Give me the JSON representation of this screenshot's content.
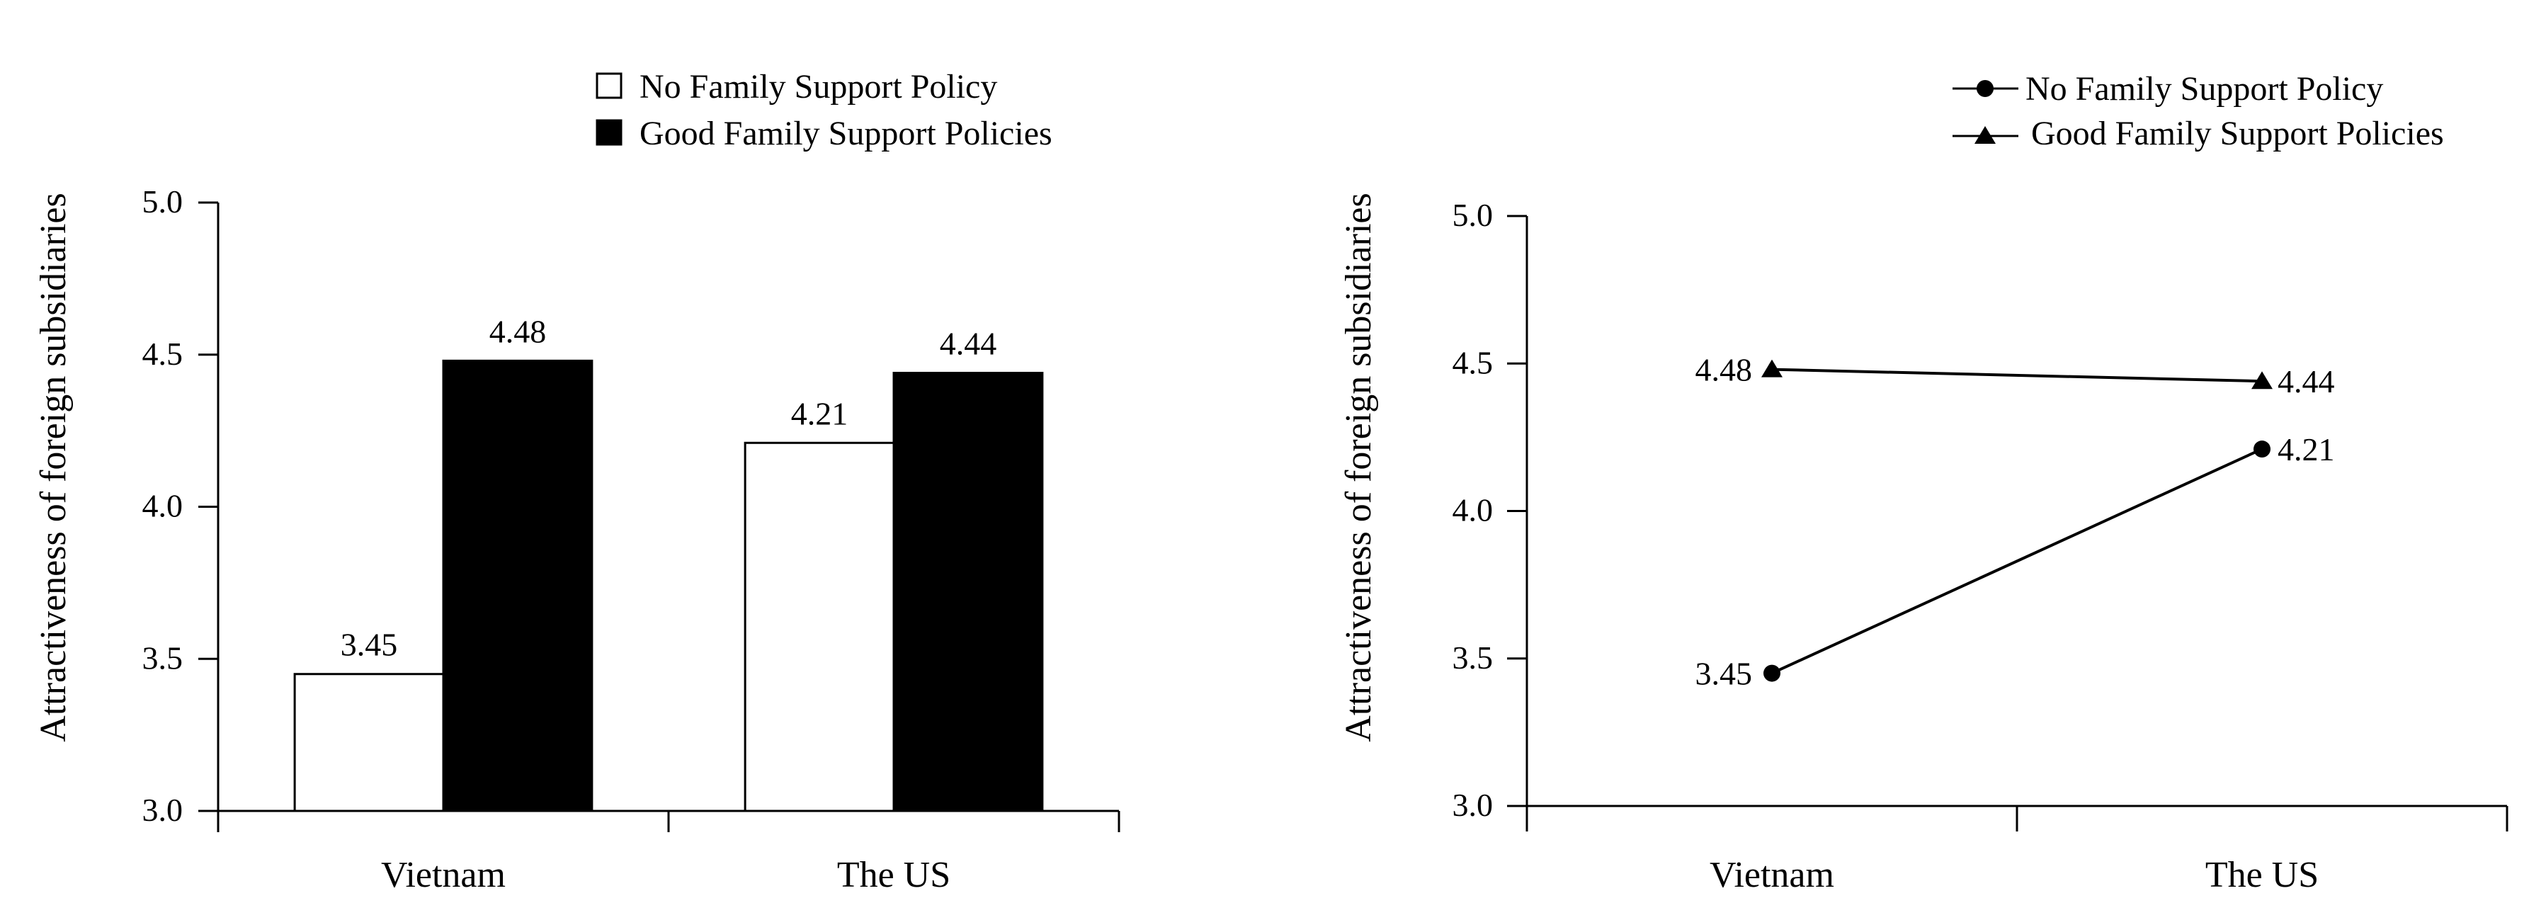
{
  "chart_data": [
    {
      "type": "bar",
      "categories": [
        "Vietnam",
        "The US"
      ],
      "series": [
        {
          "name": "No Family Support Policy",
          "values": [
            3.45,
            4.21
          ],
          "labels": [
            "3.45",
            "4.21"
          ],
          "color": "#ffffff"
        },
        {
          "name": "Good Family Support Policies",
          "values": [
            4.48,
            4.44
          ],
          "labels": [
            "4.48",
            "4.44"
          ],
          "color": "#000000"
        }
      ],
      "ylabel": "Attractiveness of foreign subsidiaries",
      "ylim": [
        3.0,
        5.0
      ],
      "yticks": [
        "3.0",
        "3.5",
        "4.0",
        "4.5",
        "5.0"
      ],
      "legend_position": "top",
      "grid": false
    },
    {
      "type": "line",
      "categories": [
        "Vietnam",
        "The US"
      ],
      "series": [
        {
          "name": "No Family Support Policy",
          "values": [
            3.45,
            4.21
          ],
          "labels": [
            "3.45",
            "4.21"
          ],
          "marker": "circle"
        },
        {
          "name": "Good Family Support Policies",
          "values": [
            4.48,
            4.44
          ],
          "labels": [
            "4.48",
            "4.44"
          ],
          "marker": "triangle"
        }
      ],
      "ylabel": "Attractiveness of foreign subsidiaries",
      "ylim": [
        3.0,
        5.0
      ],
      "yticks": [
        "3.0",
        "3.5",
        "4.0",
        "4.5",
        "5.0"
      ],
      "legend_position": "top-right",
      "grid": false
    }
  ]
}
